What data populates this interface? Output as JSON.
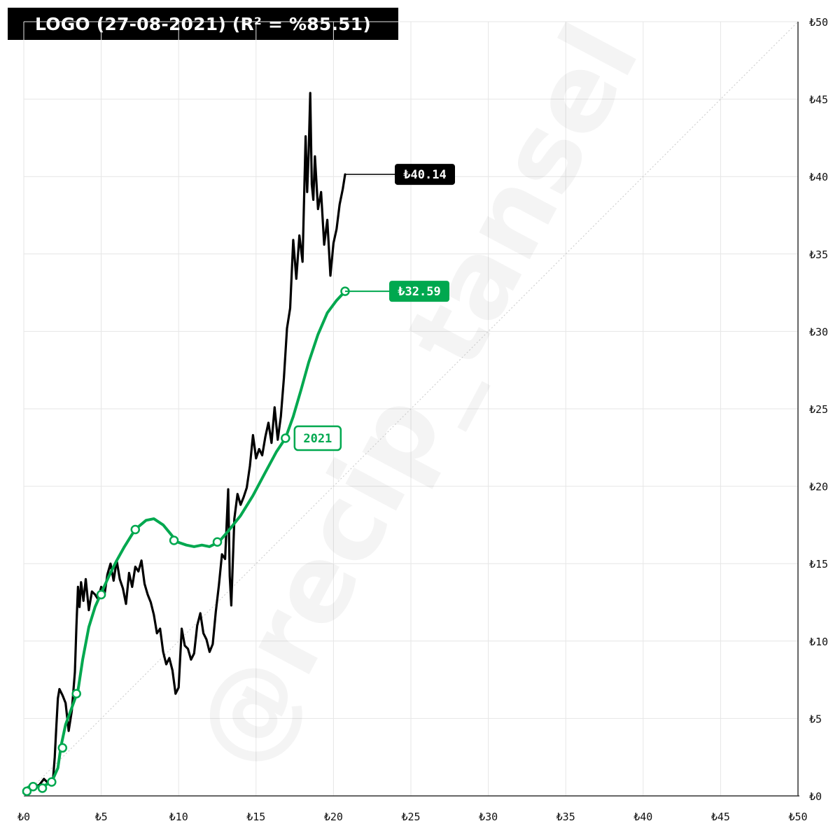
{
  "header": {
    "title": "LOGO (27-08-2021) (R² = %85.51)"
  },
  "watermark": {
    "text": "@recip_tansel"
  },
  "colors": {
    "price": "#000000",
    "fit": "#00a84f",
    "grid": "#e6e6e6",
    "diagonal": "#c8c8c8"
  },
  "chart_data": {
    "type": "line",
    "title": "LOGO (27-08-2021) (R² = %85.51)",
    "xlim": [
      0,
      50
    ],
    "ylim": [
      0,
      50
    ],
    "x_ticks": [
      0,
      5,
      10,
      15,
      20,
      25,
      30,
      35,
      40,
      45,
      50
    ],
    "y_ticks": [
      0,
      5,
      10,
      15,
      20,
      25,
      30,
      35,
      40,
      45,
      50
    ],
    "x_tick_labels": [
      "₺0",
      "₺5",
      "₺10",
      "₺15",
      "₺20",
      "₺25",
      "₺30",
      "₺35",
      "₺40",
      "₺45",
      "₺50"
    ],
    "y_tick_labels": [
      "₺0",
      "₺5",
      "₺10",
      "₺15",
      "₺20",
      "₺25",
      "₺30",
      "₺35",
      "₺40",
      "₺45",
      "₺50"
    ],
    "grid": true,
    "reference_line": {
      "type": "diagonal",
      "from": [
        0,
        0
      ],
      "to": [
        50,
        50
      ],
      "style": "dotted"
    },
    "series": [
      {
        "color": "#000000",
        "end_label": "₺40.14",
        "points": [
          [
            0,
            0.2
          ],
          [
            0.3,
            0.4
          ],
          [
            0.6,
            0.6
          ],
          [
            1.0,
            0.7
          ],
          [
            1.3,
            1.1
          ],
          [
            1.6,
            0.8
          ],
          [
            1.9,
            1.2
          ],
          [
            2.0,
            2.5
          ],
          [
            2.1,
            4.5
          ],
          [
            2.2,
            6.3
          ],
          [
            2.3,
            6.9
          ],
          [
            2.5,
            6.5
          ],
          [
            2.7,
            6.0
          ],
          [
            2.9,
            4.2
          ],
          [
            3.1,
            5.5
          ],
          [
            3.3,
            8.0
          ],
          [
            3.4,
            11.0
          ],
          [
            3.5,
            13.5
          ],
          [
            3.6,
            12.2
          ],
          [
            3.7,
            13.8
          ],
          [
            3.85,
            12.6
          ],
          [
            4.0,
            14.0
          ],
          [
            4.2,
            12.0
          ],
          [
            4.4,
            13.2
          ],
          [
            4.6,
            13.0
          ],
          [
            4.8,
            12.7
          ],
          [
            5.0,
            13.5
          ],
          [
            5.2,
            12.9
          ],
          [
            5.4,
            14.3
          ],
          [
            5.6,
            15.0
          ],
          [
            5.8,
            13.9
          ],
          [
            6.0,
            15.2
          ],
          [
            6.2,
            14.0
          ],
          [
            6.4,
            13.4
          ],
          [
            6.6,
            12.4
          ],
          [
            6.8,
            14.4
          ],
          [
            7.0,
            13.5
          ],
          [
            7.2,
            14.8
          ],
          [
            7.4,
            14.5
          ],
          [
            7.6,
            15.2
          ],
          [
            7.8,
            13.7
          ],
          [
            8.0,
            13.0
          ],
          [
            8.2,
            12.5
          ],
          [
            8.4,
            11.7
          ],
          [
            8.6,
            10.5
          ],
          [
            8.8,
            10.8
          ],
          [
            9.0,
            9.3
          ],
          [
            9.2,
            8.5
          ],
          [
            9.4,
            8.9
          ],
          [
            9.6,
            8.1
          ],
          [
            9.8,
            6.6
          ],
          [
            10.0,
            7.0
          ],
          [
            10.2,
            10.8
          ],
          [
            10.4,
            9.7
          ],
          [
            10.6,
            9.5
          ],
          [
            10.8,
            8.8
          ],
          [
            11.0,
            9.2
          ],
          [
            11.2,
            11.0
          ],
          [
            11.4,
            11.8
          ],
          [
            11.6,
            10.5
          ],
          [
            11.8,
            10.1
          ],
          [
            12.0,
            9.3
          ],
          [
            12.2,
            9.8
          ],
          [
            12.4,
            11.9
          ],
          [
            12.6,
            13.6
          ],
          [
            12.8,
            15.6
          ],
          [
            13.0,
            15.3
          ],
          [
            13.2,
            19.8
          ],
          [
            13.3,
            14.2
          ],
          [
            13.4,
            12.3
          ],
          [
            13.6,
            17.9
          ],
          [
            13.8,
            19.5
          ],
          [
            14.0,
            18.8
          ],
          [
            14.2,
            19.3
          ],
          [
            14.4,
            19.9
          ],
          [
            14.6,
            21.3
          ],
          [
            14.8,
            23.3
          ],
          [
            15.0,
            21.8
          ],
          [
            15.2,
            22.4
          ],
          [
            15.4,
            22.0
          ],
          [
            15.6,
            23.2
          ],
          [
            15.8,
            24.1
          ],
          [
            16.0,
            22.8
          ],
          [
            16.2,
            25.1
          ],
          [
            16.4,
            23.0
          ],
          [
            16.6,
            24.5
          ],
          [
            16.8,
            27.0
          ],
          [
            17.0,
            30.2
          ],
          [
            17.2,
            31.5
          ],
          [
            17.4,
            35.9
          ],
          [
            17.6,
            33.4
          ],
          [
            17.8,
            36.2
          ],
          [
            18.0,
            34.5
          ],
          [
            18.2,
            42.6
          ],
          [
            18.3,
            39.0
          ],
          [
            18.4,
            41.6
          ],
          [
            18.5,
            45.4
          ],
          [
            18.6,
            39.5
          ],
          [
            18.7,
            38.5
          ],
          [
            18.8,
            41.3
          ],
          [
            19.0,
            37.9
          ],
          [
            19.2,
            39.0
          ],
          [
            19.4,
            35.6
          ],
          [
            19.6,
            37.2
          ],
          [
            19.8,
            33.6
          ],
          [
            20.0,
            35.7
          ],
          [
            20.2,
            36.6
          ],
          [
            20.4,
            38.2
          ],
          [
            20.6,
            39.2
          ],
          [
            20.75,
            40.14
          ]
        ]
      },
      {
        "color": "#00a84f",
        "end_label": "₺32.59",
        "points": [
          [
            0,
            0.2
          ],
          [
            0.2,
            0.5
          ],
          [
            0.5,
            0.7
          ],
          [
            0.8,
            0.6
          ],
          [
            1.2,
            0.6
          ],
          [
            1.8,
            0.9
          ],
          [
            2.2,
            1.8
          ],
          [
            2.4,
            3.2
          ],
          [
            2.7,
            4.6
          ],
          [
            3.1,
            5.7
          ],
          [
            3.5,
            6.8
          ],
          [
            3.8,
            8.8
          ],
          [
            4.2,
            10.9
          ],
          [
            4.6,
            12.2
          ],
          [
            5.0,
            13.1
          ],
          [
            5.5,
            14.2
          ],
          [
            6.0,
            15.2
          ],
          [
            6.5,
            16.1
          ],
          [
            7.0,
            16.9
          ],
          [
            7.3,
            17.3
          ],
          [
            7.9,
            17.8
          ],
          [
            8.4,
            17.9
          ],
          [
            9.0,
            17.5
          ],
          [
            9.5,
            16.9
          ],
          [
            9.9,
            16.4
          ],
          [
            10.5,
            16.2
          ],
          [
            11.0,
            16.1
          ],
          [
            11.5,
            16.2
          ],
          [
            12.0,
            16.1
          ],
          [
            12.6,
            16.4
          ],
          [
            13.2,
            17.1
          ],
          [
            14.0,
            18.1
          ],
          [
            14.8,
            19.4
          ],
          [
            15.6,
            20.9
          ],
          [
            16.3,
            22.2
          ],
          [
            16.9,
            23.1
          ],
          [
            17.4,
            24.5
          ],
          [
            17.9,
            26.2
          ],
          [
            18.4,
            28.0
          ],
          [
            19.0,
            29.8
          ],
          [
            19.6,
            31.2
          ],
          [
            20.2,
            32.0
          ],
          [
            20.75,
            32.59
          ]
        ]
      }
    ],
    "markers": [
      {
        "series": 1,
        "points": [
          [
            0.2,
            0.3
          ],
          [
            0.6,
            0.6
          ],
          [
            1.2,
            0.5
          ],
          [
            1.8,
            0.9
          ],
          [
            2.5,
            3.1
          ],
          [
            3.4,
            6.6
          ],
          [
            5.0,
            13.0
          ],
          [
            7.2,
            17.2
          ],
          [
            9.7,
            16.5
          ],
          [
            12.5,
            16.4
          ],
          [
            16.9,
            23.1
          ],
          [
            20.75,
            32.59
          ]
        ]
      }
    ],
    "annotations": [
      {
        "text": "2021",
        "x": 16.9,
        "y": 23.1,
        "color": "#00a84f"
      }
    ]
  }
}
